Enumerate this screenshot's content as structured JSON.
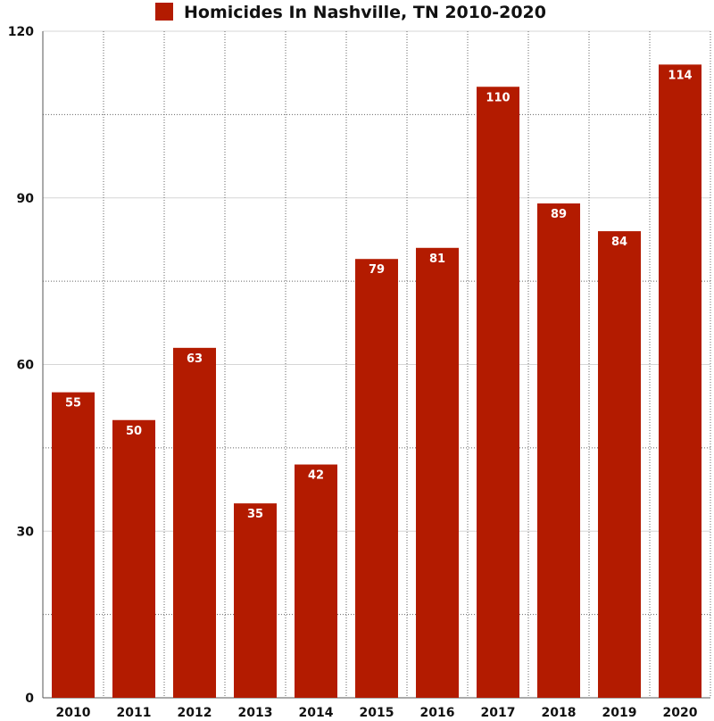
{
  "chart_data": {
    "type": "bar",
    "categories": [
      "2010",
      "2011",
      "2012",
      "2013",
      "2014",
      "2015",
      "2016",
      "2017",
      "2018",
      "2019",
      "2020"
    ],
    "series": [
      {
        "name": "Homicides In Nashville, TN 2010-2020",
        "values": [
          55,
          50,
          63,
          35,
          42,
          79,
          81,
          110,
          89,
          84,
          114
        ]
      }
    ],
    "ylim": [
      0,
      120
    ],
    "yticks": [
      0,
      30,
      60,
      90,
      120
    ],
    "y_tick_labels": [
      "0",
      "30",
      "60",
      "90",
      "120"
    ],
    "legend_position": "top",
    "grid": true,
    "data_labels": true,
    "bar_color": "#b31b00"
  }
}
